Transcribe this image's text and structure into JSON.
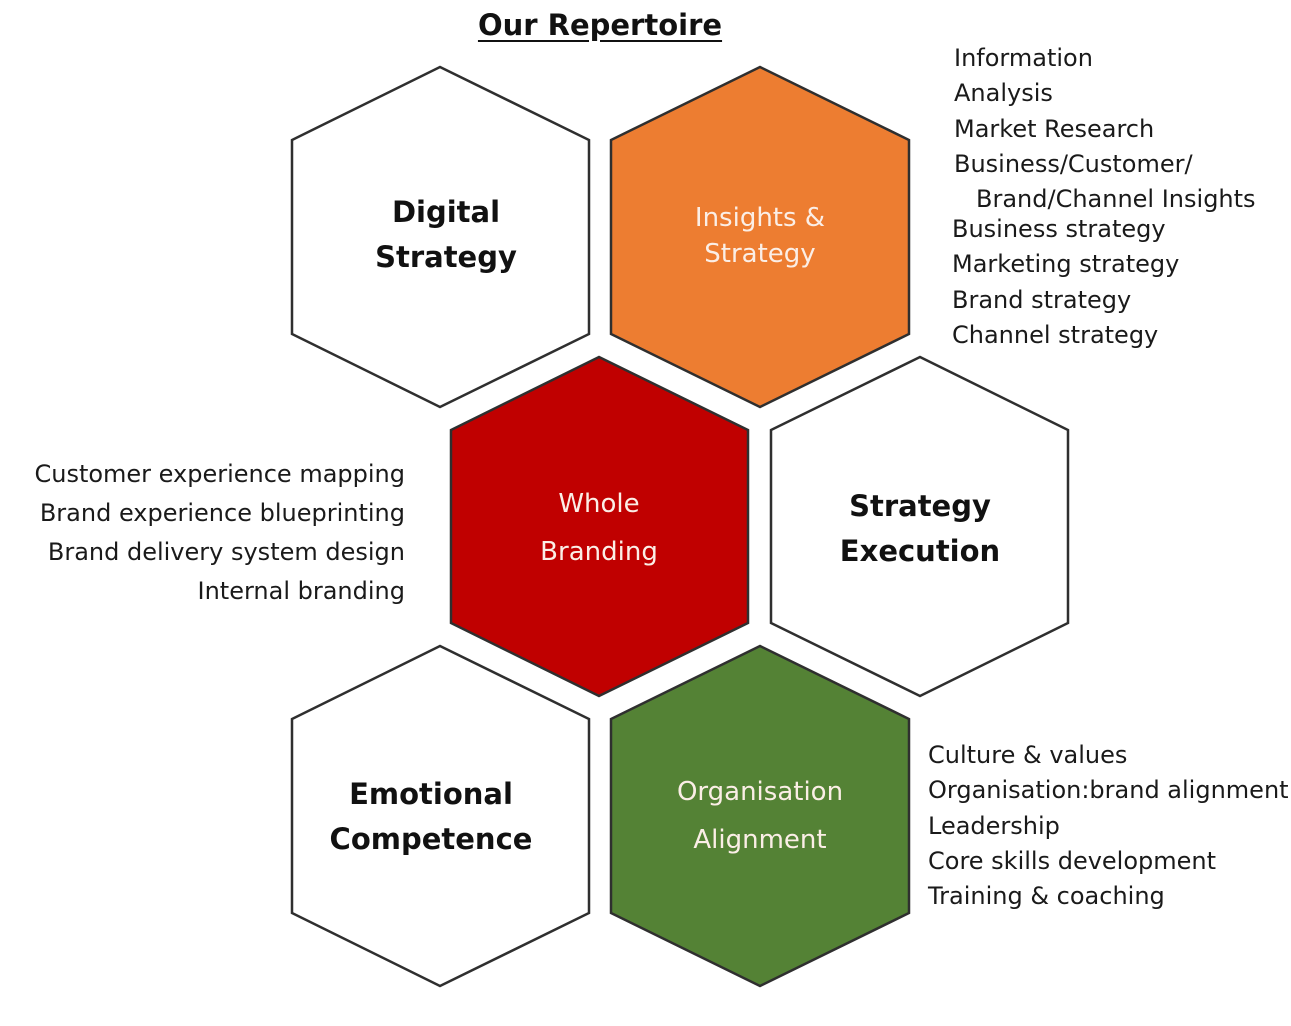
{
  "title": "Our Repertoire",
  "colors": {
    "insights": "#ED7D31",
    "branding": "#C00000",
    "organisation": "#548235",
    "outline": "#2f2f2f",
    "white_fill": "#ffffff"
  },
  "hexagons": {
    "digital_strategy": {
      "line1": "Digital",
      "line2": "Strategy"
    },
    "insights_strategy": {
      "line1": "Insights &",
      "line2": "Strategy"
    },
    "whole_branding": {
      "line1": "Whole",
      "line2": "Branding"
    },
    "strategy_execution": {
      "line1": "Strategy",
      "line2": "Execution"
    },
    "emotional_competence": {
      "line1": "Emotional",
      "line2": "Competence"
    },
    "organisation_alignment": {
      "line1": "Organisation",
      "line2": "Alignment"
    }
  },
  "insights_list": [
    "Information",
    "Analysis",
    "Market Research",
    "Business/Customer/",
    "Brand/Channel Insights"
  ],
  "strategy_list": [
    "Business strategy",
    "Marketing strategy",
    "Brand strategy",
    "Channel strategy"
  ],
  "branding_list": [
    "Customer experience mapping",
    "Brand experience blueprinting",
    "Brand delivery system design",
    "Internal branding"
  ],
  "organisation_list": [
    "Culture & values",
    "Organisation:brand alignment",
    "Leadership",
    "Core skills development",
    "Training & coaching"
  ]
}
